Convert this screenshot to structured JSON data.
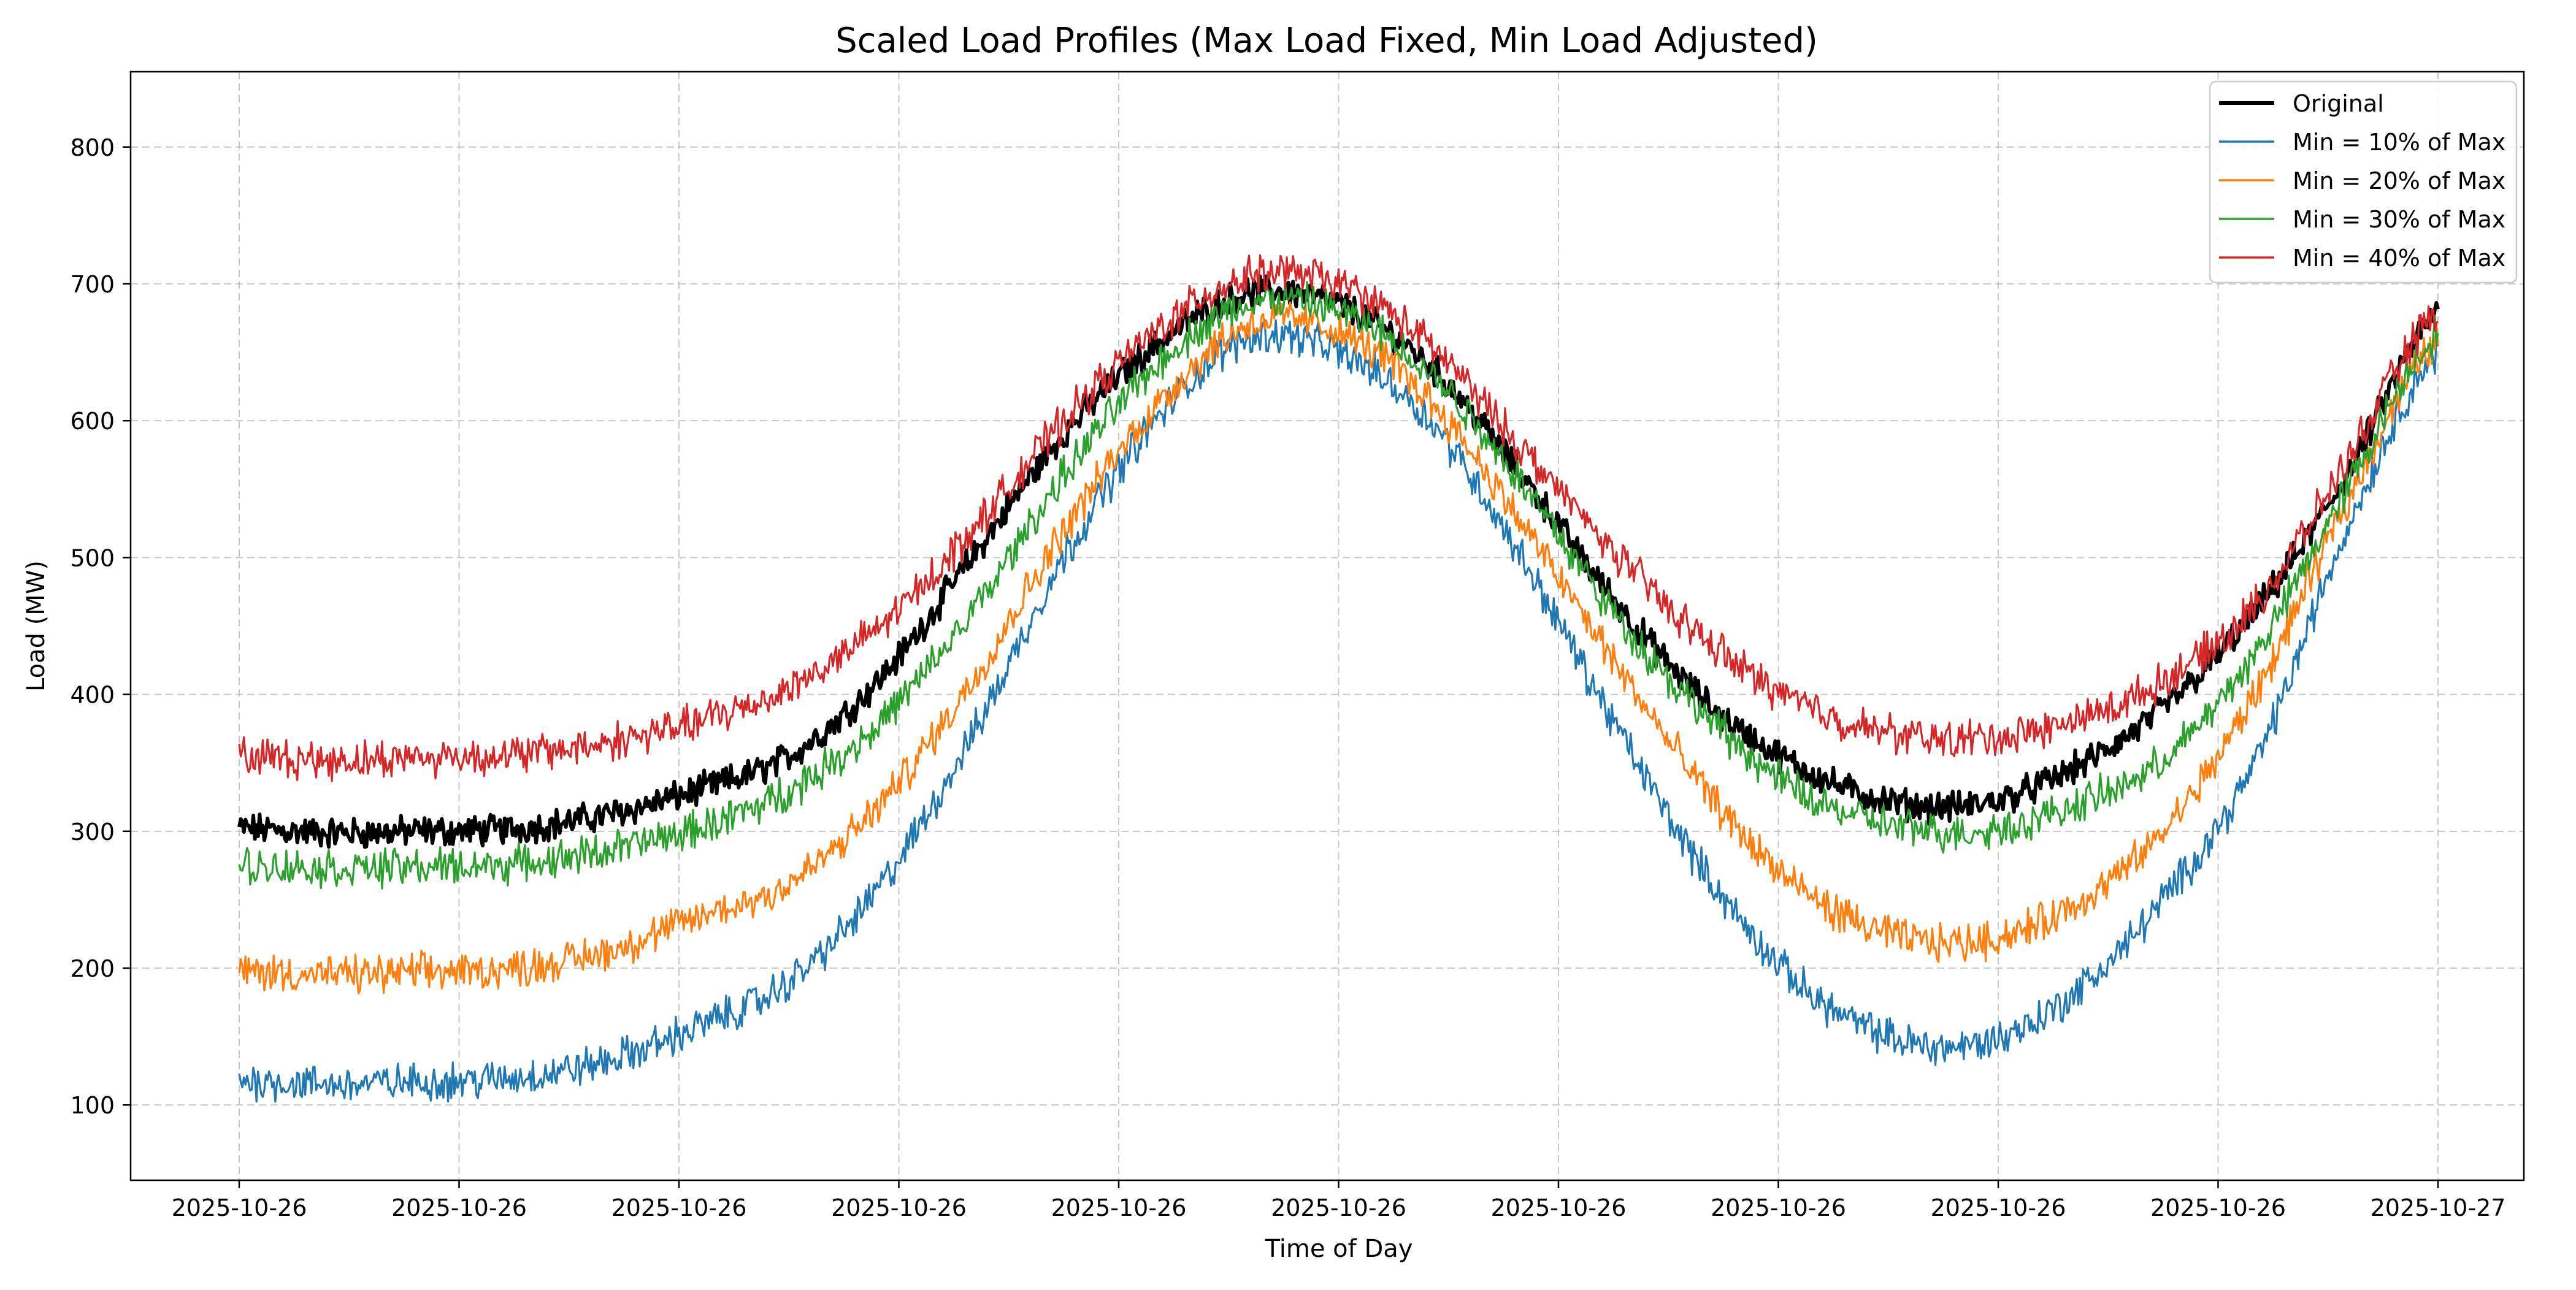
{
  "chart_data": {
    "type": "line",
    "title": "Scaled Load Profiles (Max Load Fixed, Min Load Adjusted)",
    "xlabel": "Time of Day",
    "ylabel": "Load (MW)",
    "x_ticks": [
      "2025-10-26",
      "2025-10-26",
      "2025-10-26",
      "2025-10-26",
      "2025-10-26",
      "2025-10-26",
      "2025-10-26",
      "2025-10-26",
      "2025-10-26",
      "2025-10-26",
      "2025-10-27"
    ],
    "y_ticks": [
      100,
      200,
      300,
      400,
      500,
      600,
      700,
      800
    ],
    "ylim": [
      45,
      855
    ],
    "grid": true,
    "legend_position": "top-right",
    "x_hours": [
      0,
      1,
      2,
      3,
      4,
      5,
      6,
      7,
      8,
      9,
      10,
      11,
      12,
      13,
      14,
      15,
      16,
      17,
      18,
      19,
      20,
      21,
      22,
      23,
      24
    ],
    "series": [
      {
        "name": "Original",
        "color": "#000000",
        "width": 2,
        "values": [
          302,
          299,
          300,
          302,
          312,
          330,
          355,
          412,
          500,
          590,
          655,
          693,
          685,
          640,
          560,
          470,
          395,
          348,
          322,
          320,
          345,
          390,
          460,
          560,
          680
        ]
      },
      {
        "name": "Min = 10% of Max",
        "color": "#1f77b4",
        "width": 1,
        "values": [
          118,
          115,
          117,
          120,
          132,
          157,
          190,
          260,
          370,
          500,
          600,
          660,
          650,
          600,
          500,
          380,
          270,
          190,
          150,
          145,
          180,
          250,
          350,
          520,
          650
        ]
      },
      {
        "name": "Min = 20% of Max",
        "color": "#ff7f0e",
        "width": 1,
        "values": [
          198,
          195,
          197,
          200,
          212,
          237,
          262,
          320,
          410,
          520,
          610,
          670,
          665,
          615,
          525,
          425,
          330,
          260,
          225,
          220,
          245,
          300,
          400,
          540,
          660
        ]
      },
      {
        "name": "Min = 30% of Max",
        "color": "#2ca02c",
        "width": 1,
        "values": [
          275,
          273,
          274,
          276,
          286,
          302,
          330,
          380,
          460,
          560,
          640,
          685,
          680,
          635,
          555,
          460,
          385,
          330,
          305,
          300,
          318,
          352,
          430,
          550,
          665
        ]
      },
      {
        "name": "Min = 40% of Max",
        "color": "#d62728",
        "width": 1,
        "values": [
          355,
          352,
          354,
          356,
          365,
          380,
          405,
          450,
          520,
          600,
          665,
          705,
          700,
          655,
          580,
          505,
          440,
          395,
          372,
          368,
          380,
          410,
          465,
          570,
          680
        ]
      }
    ]
  }
}
